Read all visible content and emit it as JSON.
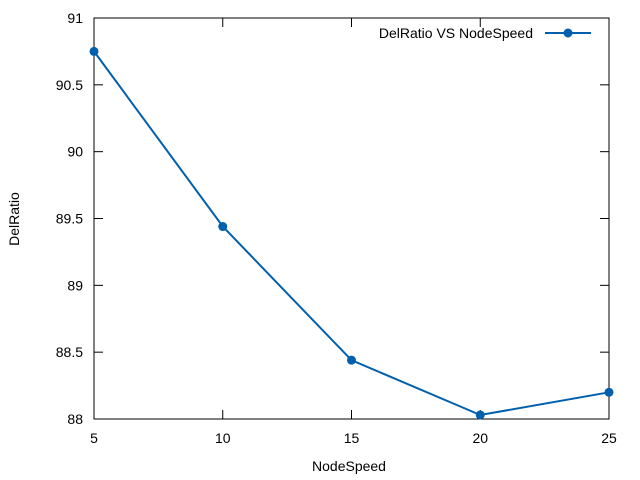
{
  "chart_data": {
    "type": "line",
    "title": "",
    "xlabel": "NodeSpeed",
    "ylabel": "DelRatio",
    "xlim": [
      5,
      25
    ],
    "ylim": [
      88,
      91
    ],
    "x_ticks": [
      5,
      10,
      15,
      20,
      25
    ],
    "y_ticks": [
      88,
      88.5,
      89,
      89.5,
      90,
      90.5,
      91
    ],
    "grid": false,
    "legend_position": "top-right",
    "series": [
      {
        "name": "DelRatio VS NodeSpeed",
        "color": "#0060ad",
        "marker": "circle",
        "x": [
          5,
          10,
          15,
          20,
          25
        ],
        "y": [
          90.75,
          89.44,
          88.44,
          88.03,
          88.2
        ]
      }
    ]
  }
}
